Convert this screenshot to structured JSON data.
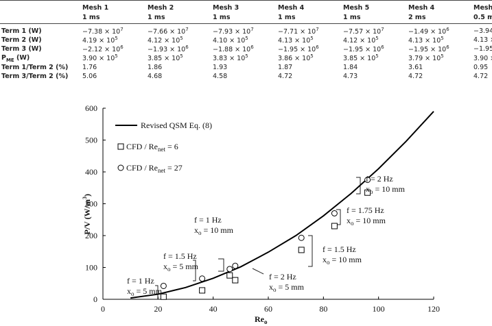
{
  "table": {
    "columns": [
      {
        "name": "Mesh 1",
        "step": "1 ms"
      },
      {
        "name": "Mesh 2",
        "step": "1 ms"
      },
      {
        "name": "Mesh 3",
        "step": "1 ms"
      },
      {
        "name": "Mesh 4",
        "step": "1 ms"
      },
      {
        "name": "Mesh 5",
        "step": "1 ms"
      },
      {
        "name": "Mesh 4",
        "step": "2 ms"
      },
      {
        "name": "Mesh",
        "step": "0.5 m"
      }
    ],
    "rows": [
      {
        "label": "Term 1 (W)",
        "cells": [
          {
            "m": "−7.38 × 10",
            "e": "7"
          },
          {
            "m": "−7.66 × 10",
            "e": "7"
          },
          {
            "m": "−7.93 × 10",
            "e": "7"
          },
          {
            "m": "−7.71 × 10",
            "e": "7"
          },
          {
            "m": "−7.57 × 10",
            "e": "7"
          },
          {
            "m": "−1.49 × 10",
            "e": "6"
          },
          "−3.94"
        ]
      },
      {
        "label": "Term 2 (W)",
        "cells": [
          {
            "m": "4.19 × 10",
            "e": "5"
          },
          {
            "m": "4.12 × 10",
            "e": "5"
          },
          {
            "m": "4.10 × 10",
            "e": "5"
          },
          {
            "m": "4.13 × 10",
            "e": "5"
          },
          {
            "m": "4.12 × 10",
            "e": "5"
          },
          {
            "m": "4.13 × 10",
            "e": "5"
          },
          "4.13 ×"
        ]
      },
      {
        "label": "Term 3 (W)",
        "cells": [
          {
            "m": "−2.12 × 10",
            "e": "6"
          },
          {
            "m": "−1.93 × 10",
            "e": "6"
          },
          {
            "m": "−1.88 × 10",
            "e": "6"
          },
          {
            "m": "−1.95 × 10",
            "e": "6"
          },
          {
            "m": "−1.95 × 10",
            "e": "6"
          },
          {
            "m": "−1.95 × 10",
            "e": "6"
          },
          "−1.95"
        ]
      },
      {
        "label": {
          "m": "P",
          "sub": "ME",
          "rest": " (W)"
        },
        "cells": [
          {
            "m": "3.90 × 10",
            "e": "5"
          },
          {
            "m": "3.85 × 10",
            "e": "5"
          },
          {
            "m": "3.83 × 10",
            "e": "5"
          },
          {
            "m": "3.86 × 10",
            "e": "5"
          },
          {
            "m": "3.85 × 10",
            "e": "5"
          },
          {
            "m": "3.79 × 10",
            "e": "5"
          },
          "3.90 ×"
        ]
      },
      {
        "label": "Term 1/Term 2 (%)",
        "cells": [
          "1.76",
          "1.86",
          "1.93",
          "1.87",
          "1.84",
          "3.61",
          "0.95"
        ]
      },
      {
        "label": "Term 3/Term 2 (%)",
        "cells": [
          "5.06",
          "4.68",
          "4.58",
          "4.72",
          "4.73",
          "4.72",
          "4.72"
        ]
      }
    ]
  },
  "chart_data": {
    "type": "scatter",
    "x_label": {
      "m": "Re",
      "sub": "o"
    },
    "y_label": {
      "m": "P/V (W/m",
      "e": "3",
      "rest": ")"
    },
    "xlim": [
      0,
      120
    ],
    "xticks": [
      0,
      20,
      40,
      60,
      80,
      100,
      120
    ],
    "ylim": [
      0,
      600
    ],
    "yticks": [
      0,
      100,
      200,
      300,
      400,
      500,
      600
    ],
    "series": [
      {
        "name": "Revised QSM Eq. (8)",
        "marker": "line",
        "color": "#000000",
        "x": [
          10,
          20,
          30,
          40,
          50,
          60,
          70,
          80,
          90,
          100,
          110,
          120
        ],
        "values": [
          4,
          16,
          37,
          66,
          102,
          148,
          200,
          262,
          332,
          410,
          496,
          590
        ]
      },
      {
        "name": "CFD / Re",
        "name_sub": "net",
        "name_rest": " = 6",
        "marker": "square",
        "color": "#000000",
        "x": [
          22,
          36,
          46,
          48,
          72,
          84,
          96
        ],
        "values": [
          8,
          28,
          75,
          60,
          155,
          230,
          335
        ]
      },
      {
        "name": "CFD / Re",
        "name_sub": "net",
        "name_rest": " = 27",
        "marker": "circle",
        "color": "#000000",
        "x": [
          22,
          36,
          46,
          48,
          72,
          84,
          96
        ],
        "values": [
          42,
          65,
          95,
          105,
          193,
          270,
          375
        ]
      }
    ],
    "annotations": [
      {
        "f": "f = 1 Hz",
        "x": {
          "m": "x",
          "sub": "o",
          "rest": " = 5 mm"
        }
      },
      {
        "f": "f = 1.5 Hz",
        "x": {
          "m": "x",
          "sub": "o",
          "rest": " = 5 mm"
        }
      },
      {
        "f": "f = 1 Hz",
        "x": {
          "m": "x",
          "sub": "o",
          "rest": " = 10 mm"
        }
      },
      {
        "f": "f = 2 Hz",
        "x": {
          "m": "x",
          "sub": "o",
          "rest": " = 5 mm"
        }
      },
      {
        "f": "f = 1.5 Hz",
        "x": {
          "m": "x",
          "sub": "o",
          "rest": " = 10 mm"
        }
      },
      {
        "f": "f = 1.75 Hz",
        "x": {
          "m": "x",
          "sub": "o",
          "rest": " = 10 mm"
        }
      },
      {
        "f": "f = 2 Hz",
        "x": {
          "m": "x",
          "sub": "o",
          "rest": " = 10 mm"
        }
      }
    ]
  }
}
